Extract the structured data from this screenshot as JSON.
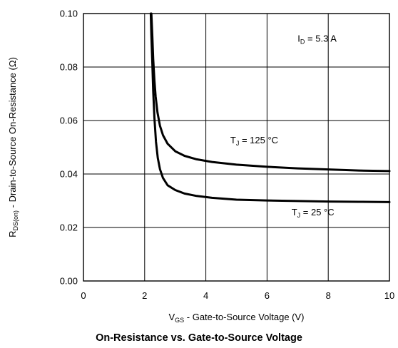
{
  "chart_data": {
    "type": "line",
    "title": "On-Resistance vs. Gate-to-Source Voltage",
    "xlabel": {
      "main": "V",
      "sub": "GS",
      "rest": " - Gate-to-Source Voltage (V)"
    },
    "ylabel": {
      "main": "R",
      "sub": "DS(on)",
      "rest": " - Drain-to-Source On-Resistance (Ω)"
    },
    "xlim": [
      0,
      10
    ],
    "ylim": [
      0,
      0.1
    ],
    "xticks": [
      0,
      2,
      4,
      6,
      8,
      10
    ],
    "xtick_labels": [
      "0",
      "2",
      "4",
      "6",
      "8",
      "10"
    ],
    "yticks": [
      0,
      0.02,
      0.04,
      0.06,
      0.08,
      0.1
    ],
    "ytick_labels": [
      "0.00",
      "0.02",
      "0.04",
      "0.06",
      "0.08",
      "0.10"
    ],
    "grid": true,
    "annotations": [
      {
        "main": "I",
        "sub": "D",
        "rest": " = 5.3 A",
        "x": 7.0,
        "y": 0.0895
      },
      {
        "main": "T",
        "sub": "J",
        "rest": " = 125 °C",
        "x": 4.8,
        "y": 0.0515
      },
      {
        "main": "T",
        "sub": "J",
        "rest": " = 25 °C",
        "x": 6.8,
        "y": 0.0245
      }
    ],
    "series": [
      {
        "label": {
          "main": "T",
          "sub": "J",
          "rest": " = 125 °C"
        },
        "x": [
          2.22,
          2.25,
          2.28,
          2.32,
          2.36,
          2.42,
          2.5,
          2.6,
          2.75,
          3.0,
          3.3,
          3.7,
          4.2,
          5.0,
          6.0,
          7.0,
          8.0,
          9.0,
          10.0
        ],
        "y": [
          0.1,
          0.092,
          0.083,
          0.075,
          0.069,
          0.063,
          0.058,
          0.0545,
          0.0513,
          0.0485,
          0.0468,
          0.0455,
          0.0445,
          0.0435,
          0.0427,
          0.0421,
          0.0417,
          0.0413,
          0.0411
        ]
      },
      {
        "label": {
          "main": "T",
          "sub": "J",
          "rest": " = 25 °C"
        },
        "x": [
          2.2,
          2.22,
          2.25,
          2.28,
          2.32,
          2.37,
          2.43,
          2.5,
          2.6,
          2.75,
          3.0,
          3.3,
          3.7,
          4.2,
          5.0,
          6.0,
          7.0,
          8.0,
          9.0,
          10.0
        ],
        "y": [
          0.1,
          0.092,
          0.082,
          0.071,
          0.061,
          0.052,
          0.046,
          0.0418,
          0.0385,
          0.0358,
          0.034,
          0.0327,
          0.0318,
          0.0311,
          0.0304,
          0.0301,
          0.0299,
          0.0297,
          0.0296,
          0.0295
        ]
      }
    ]
  }
}
